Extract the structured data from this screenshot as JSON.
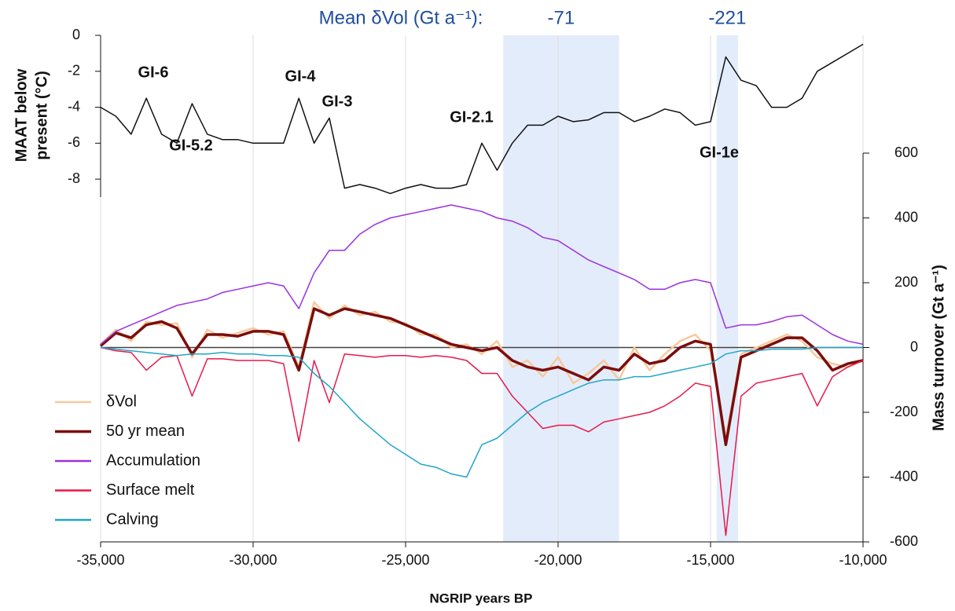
{
  "chart_data": [
    {
      "type": "line",
      "ylabel_lines": [
        "MAAT below",
        "present (°C)"
      ],
      "ylim": [
        -9,
        0
      ],
      "yticks": [
        0,
        -2,
        -4,
        -6,
        -8
      ],
      "x": [
        -35000,
        -34500,
        -34000,
        -33500,
        -33000,
        -32500,
        -32000,
        -31500,
        -31000,
        -30500,
        -30000,
        -29500,
        -29000,
        -28500,
        -28000,
        -27500,
        -27000,
        -26500,
        -26000,
        -25500,
        -25000,
        -24500,
        -24000,
        -23500,
        -23000,
        -22500,
        -22000,
        -21500,
        -21000,
        -20500,
        -20000,
        -19500,
        -19000,
        -18500,
        -18000,
        -17500,
        -17000,
        -16500,
        -16000,
        -15500,
        -15000,
        -14500,
        -14000,
        -13500,
        -13000,
        -12500,
        -12000,
        -11500,
        -11000,
        -10500,
        -10000
      ],
      "series": [
        {
          "name": "MAAT",
          "color": "#111111",
          "values": [
            -4,
            -4.5,
            -5.5,
            -3.5,
            -5.5,
            -6,
            -3.8,
            -5.5,
            -5.8,
            -5.8,
            -6,
            -6,
            -6,
            -3.5,
            -6,
            -4.6,
            -8.5,
            -8.3,
            -8.5,
            -8.8,
            -8.5,
            -8.3,
            -8.5,
            -8.5,
            -8.3,
            -6,
            -7.5,
            -6,
            -5,
            -5,
            -4.5,
            -4.8,
            -4.7,
            -4.3,
            -4.3,
            -4.8,
            -4.5,
            -4.1,
            -4.3,
            -5,
            -4.8,
            -1.2,
            -2.5,
            -2.8,
            -4,
            -4,
            -3.5,
            -2,
            -1.5,
            -1,
            -0.5
          ]
        }
      ],
      "annotations": [
        "GI-6",
        "GI-5.2",
        "GI-4",
        "GI-3",
        "GI-2.1",
        "GI-1e"
      ]
    },
    {
      "type": "line",
      "title": "Mean δVol (Gt a⁻¹):",
      "bands": [
        {
          "xlim": [
            -21800,
            -18000
          ],
          "mean": -71
        },
        {
          "xlim": [
            -14800,
            -14100
          ],
          "mean": -221
        }
      ],
      "xlabel": "NGRIP years BP",
      "ylabel": "Mass turnover (Gt a⁻¹)",
      "xlim": [
        -35000,
        -10000
      ],
      "xticks": [
        {
          "value": -35000,
          "label": "-35,000"
        },
        {
          "value": -30000,
          "label": "-30,000"
        },
        {
          "value": -25000,
          "label": "-25,000"
        },
        {
          "value": -20000,
          "label": "-20,000"
        },
        {
          "value": -15000,
          "label": "-15,000"
        },
        {
          "value": -10000,
          "label": "-10,000"
        }
      ],
      "ylim": [
        -600,
        600
      ],
      "yticks": [
        600,
        400,
        200,
        0,
        -200,
        -400,
        -600
      ],
      "grid": true,
      "legend": "lower-left",
      "x": [
        -35000,
        -34500,
        -34000,
        -33500,
        -33000,
        -32500,
        -32000,
        -31500,
        -31000,
        -30500,
        -30000,
        -29500,
        -29000,
        -28500,
        -28000,
        -27500,
        -27000,
        -26500,
        -26000,
        -25500,
        -25000,
        -24500,
        -24000,
        -23500,
        -23000,
        -22500,
        -22000,
        -21500,
        -21000,
        -20500,
        -20000,
        -19500,
        -19000,
        -18500,
        -18000,
        -17500,
        -17000,
        -16500,
        -16000,
        -15500,
        -15000,
        -14500,
        -14000,
        -13500,
        -13000,
        -12500,
        -12000,
        -11500,
        -11000,
        -10500,
        -10000
      ],
      "series": [
        {
          "name": "δVol",
          "color": "#f7c99c",
          "values": [
            10,
            55,
            20,
            80,
            70,
            75,
            -30,
            55,
            30,
            45,
            60,
            40,
            50,
            -60,
            140,
            90,
            130,
            100,
            110,
            80,
            75,
            40,
            40,
            0,
            10,
            -20,
            20,
            -60,
            -40,
            -90,
            -30,
            -110,
            -80,
            -40,
            -100,
            0,
            -70,
            -20,
            20,
            40,
            -10,
            -280,
            -20,
            0,
            20,
            40,
            20,
            -30,
            -50,
            -60,
            -40
          ]
        },
        {
          "name": "50 yr mean",
          "color": "#7b0d0d",
          "values": [
            5,
            45,
            30,
            70,
            80,
            60,
            -20,
            40,
            40,
            35,
            50,
            50,
            40,
            -70,
            120,
            100,
            120,
            110,
            100,
            90,
            70,
            50,
            30,
            10,
            0,
            -10,
            0,
            -40,
            -60,
            -70,
            -60,
            -80,
            -100,
            -60,
            -70,
            -20,
            -50,
            -40,
            0,
            20,
            10,
            -300,
            -30,
            -10,
            10,
            30,
            30,
            -10,
            -70,
            -50,
            -40
          ]
        },
        {
          "name": "Accumulation",
          "color": "#9b30e0",
          "values": [
            10,
            50,
            70,
            90,
            110,
            130,
            140,
            150,
            170,
            180,
            190,
            200,
            190,
            120,
            230,
            300,
            300,
            350,
            380,
            400,
            410,
            420,
            430,
            440,
            430,
            420,
            400,
            390,
            370,
            340,
            330,
            300,
            270,
            250,
            230,
            210,
            180,
            180,
            200,
            210,
            200,
            60,
            70,
            70,
            80,
            95,
            100,
            70,
            40,
            20,
            10
          ]
        },
        {
          "name": "Surface melt",
          "color": "#e8194a",
          "values": [
            0,
            -10,
            -15,
            -70,
            -30,
            -25,
            -150,
            -35,
            -35,
            -40,
            -40,
            -40,
            -50,
            -290,
            -40,
            -170,
            -20,
            -25,
            -30,
            -25,
            -25,
            -30,
            -25,
            -30,
            -40,
            -80,
            -80,
            -150,
            -200,
            -250,
            -240,
            -240,
            -260,
            -230,
            -220,
            -210,
            -200,
            -180,
            -150,
            -110,
            -120,
            -580,
            -150,
            -110,
            -100,
            -90,
            -80,
            -180,
            -90,
            -60,
            -40
          ]
        },
        {
          "name": "Calving",
          "color": "#22a6c8",
          "values": [
            0,
            -5,
            -10,
            -15,
            -20,
            -25,
            -20,
            -20,
            -15,
            -20,
            -20,
            -25,
            -25,
            -30,
            -80,
            -120,
            -170,
            -220,
            -260,
            -300,
            -330,
            -360,
            -370,
            -390,
            -400,
            -300,
            -280,
            -240,
            -200,
            -170,
            -150,
            -130,
            -110,
            -100,
            -100,
            -90,
            -90,
            -80,
            -70,
            -60,
            -50,
            -20,
            -10,
            -10,
            -5,
            -5,
            -5,
            0,
            0,
            0,
            0
          ]
        }
      ]
    }
  ]
}
